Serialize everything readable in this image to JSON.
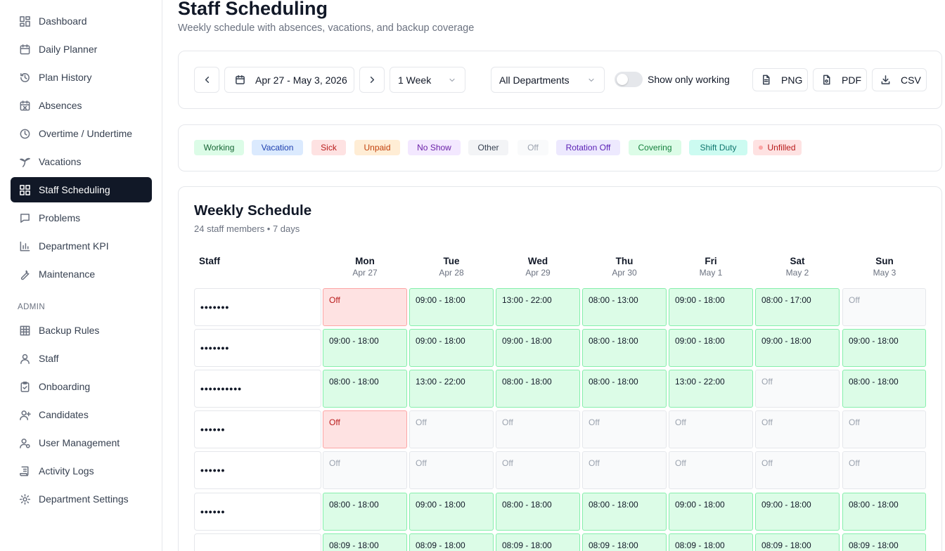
{
  "sidebar": {
    "items": [
      {
        "label": "Dashboard",
        "icon": "dashboard-icon"
      },
      {
        "label": "Daily Planner",
        "icon": "calendar-icon"
      },
      {
        "label": "Plan History",
        "icon": "history-icon"
      },
      {
        "label": "Absences",
        "icon": "calendar-x-icon"
      },
      {
        "label": "Overtime / Undertime",
        "icon": "clock-icon"
      },
      {
        "label": "Vacations",
        "icon": "palm-tree-icon"
      },
      {
        "label": "Staff Scheduling",
        "icon": "grid-icon",
        "active": true
      },
      {
        "label": "Problems",
        "icon": "message-icon"
      },
      {
        "label": "Department KPI",
        "icon": "bar-chart-icon"
      },
      {
        "label": "Maintenance",
        "icon": "wrench-icon"
      }
    ],
    "admin_label": "ADMIN",
    "admin_items": [
      {
        "label": "Backup Rules",
        "icon": "table-icon"
      },
      {
        "label": "Staff",
        "icon": "user-icon"
      },
      {
        "label": "Onboarding",
        "icon": "clipboard-check-icon"
      },
      {
        "label": "Candidates",
        "icon": "user-plus-icon"
      },
      {
        "label": "User Management",
        "icon": "user-cog-icon"
      },
      {
        "label": "Activity Logs",
        "icon": "scroll-icon"
      },
      {
        "label": "Department Settings",
        "icon": "gear-icon"
      }
    ]
  },
  "header": {
    "title": "Staff Scheduling",
    "subtitle": "Weekly schedule with absences, vacations, and backup coverage"
  },
  "toolbar": {
    "date_range": "Apr 27 - May 3, 2026",
    "period": "1 Week",
    "department": "All Departments",
    "toggle_label": "Show only working",
    "toggle_on": false,
    "png_label": "PNG",
    "pdf_label": "PDF",
    "csv_label": "CSV"
  },
  "legend": [
    {
      "label": "Working",
      "bg": "#dcfce7",
      "color": "#166534"
    },
    {
      "label": "Vacation",
      "bg": "#dbeafe",
      "color": "#1e40af"
    },
    {
      "label": "Sick",
      "bg": "#fee2e2",
      "color": "#b91c1c"
    },
    {
      "label": "Unpaid",
      "bg": "#ffedd5",
      "color": "#c2410c"
    },
    {
      "label": "No Show",
      "bg": "#f3e8ff",
      "color": "#6b21a8"
    },
    {
      "label": "Other",
      "bg": "#f3f4f6",
      "color": "#374151"
    },
    {
      "label": "Off",
      "bg": "#f9fafb",
      "color": "#9ca3af"
    },
    {
      "label": "Rotation Off",
      "bg": "#ede9fe",
      "color": "#5b21b6"
    },
    {
      "label": "Covering",
      "bg": "#dcfce7",
      "color": "#15803d"
    },
    {
      "label": "Shift Duty",
      "bg": "#ccfbf1",
      "color": "#0f766e"
    },
    {
      "label": "Unfilled",
      "bg": "#fee2e2",
      "color": "#b91c1c",
      "dot": true
    }
  ],
  "schedule": {
    "title": "Weekly Schedule",
    "subtitle": "24 staff members • 7 days",
    "staff_header": "Staff",
    "days": [
      {
        "name": "Mon",
        "date": "Apr 27"
      },
      {
        "name": "Tue",
        "date": "Apr 28"
      },
      {
        "name": "Wed",
        "date": "Apr 29"
      },
      {
        "name": "Thu",
        "date": "Apr 30"
      },
      {
        "name": "Fri",
        "date": "May 1"
      },
      {
        "name": "Sat",
        "date": "May 2"
      },
      {
        "name": "Sun",
        "date": "May 3"
      }
    ],
    "rows": [
      {
        "name": "•••••••",
        "cells": [
          {
            "text": "Off",
            "status": "sick"
          },
          {
            "text": "09:00 - 18:00",
            "status": "working"
          },
          {
            "text": "13:00 - 22:00",
            "status": "working"
          },
          {
            "text": "08:00 - 13:00",
            "status": "working"
          },
          {
            "text": "09:00 - 18:00",
            "status": "working"
          },
          {
            "text": "08:00 - 17:00",
            "status": "working"
          },
          {
            "text": "Off",
            "status": "off"
          }
        ]
      },
      {
        "name": "•••••••",
        "cells": [
          {
            "text": "09:00 - 18:00",
            "status": "working"
          },
          {
            "text": "09:00 - 18:00",
            "status": "working"
          },
          {
            "text": "09:00 - 18:00",
            "status": "working"
          },
          {
            "text": "08:00 - 18:00",
            "status": "working"
          },
          {
            "text": "09:00 - 18:00",
            "status": "working"
          },
          {
            "text": "09:00 - 18:00",
            "status": "working"
          },
          {
            "text": "09:00 - 18:00",
            "status": "working"
          }
        ]
      },
      {
        "name": "••••••••••",
        "cells": [
          {
            "text": "08:00 - 18:00",
            "status": "working"
          },
          {
            "text": "13:00 - 22:00",
            "status": "working"
          },
          {
            "text": "08:00 - 18:00",
            "status": "working"
          },
          {
            "text": "08:00 - 18:00",
            "status": "working"
          },
          {
            "text": "13:00 - 22:00",
            "status": "working"
          },
          {
            "text": "Off",
            "status": "off"
          },
          {
            "text": "08:00 - 18:00",
            "status": "working"
          }
        ]
      },
      {
        "name": "••••••",
        "cells": [
          {
            "text": "Off",
            "status": "sick"
          },
          {
            "text": "Off",
            "status": "off"
          },
          {
            "text": "Off",
            "status": "off"
          },
          {
            "text": "Off",
            "status": "off"
          },
          {
            "text": "Off",
            "status": "off"
          },
          {
            "text": "Off",
            "status": "off"
          },
          {
            "text": "Off",
            "status": "off"
          }
        ]
      },
      {
        "name": "••••••",
        "cells": [
          {
            "text": "Off",
            "status": "off"
          },
          {
            "text": "Off",
            "status": "off"
          },
          {
            "text": "Off",
            "status": "off"
          },
          {
            "text": "Off",
            "status": "off"
          },
          {
            "text": "Off",
            "status": "off"
          },
          {
            "text": "Off",
            "status": "off"
          },
          {
            "text": "Off",
            "status": "off"
          }
        ]
      },
      {
        "name": "••••••",
        "cells": [
          {
            "text": "08:00 - 18:00",
            "status": "working"
          },
          {
            "text": "09:00 - 18:00",
            "status": "working"
          },
          {
            "text": "08:00 - 18:00",
            "status": "working"
          },
          {
            "text": "08:00 - 18:00",
            "status": "working"
          },
          {
            "text": "09:00 - 18:00",
            "status": "working"
          },
          {
            "text": "09:00 - 18:00",
            "status": "working"
          },
          {
            "text": "08:00 - 18:00",
            "status": "working"
          }
        ]
      },
      {
        "name": "••••••",
        "cells": [
          {
            "text": "08:09 - 18:00",
            "status": "working"
          },
          {
            "text": "08:09 - 18:00",
            "status": "working"
          },
          {
            "text": "08:09 - 18:00",
            "status": "working"
          },
          {
            "text": "08:09 - 18:00",
            "status": "working"
          },
          {
            "text": "08:09 - 18:00",
            "status": "working"
          },
          {
            "text": "08:09 - 18:00",
            "status": "working"
          },
          {
            "text": "08:09 - 18:00",
            "status": "working"
          }
        ]
      }
    ]
  }
}
